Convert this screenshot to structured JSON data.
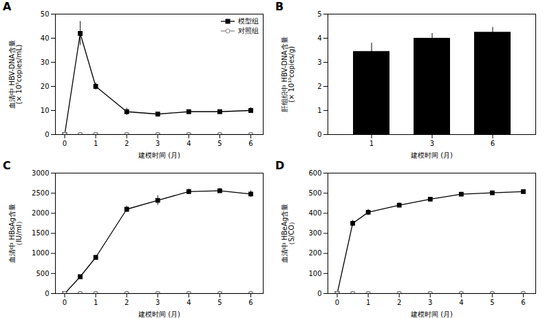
{
  "chart_data": [
    {
      "type": "line",
      "title": "A",
      "xlabel": "建模时间 (月)",
      "ylabel": "血清中 HBV-DNA含量\n(× 10⁵copies/mL)",
      "x": [
        0,
        0.5,
        1,
        2,
        3,
        4,
        5,
        6
      ],
      "series": [
        {
          "name": "模型组",
          "color": "black",
          "marker": "square",
          "values": [
            0,
            42,
            20,
            9.5,
            8.5,
            9.5,
            9.5,
            10
          ],
          "errors": [
            0,
            5,
            1.5,
            1.5,
            0.5,
            0.5,
            0.5,
            1.2
          ]
        },
        {
          "name": "对照组",
          "color": "#888888",
          "marker": "hollow_circle",
          "values": [
            0,
            0,
            0,
            0,
            0,
            0,
            0,
            0
          ],
          "errors": [
            0,
            0,
            0,
            0,
            0,
            0,
            0,
            0
          ]
        }
      ],
      "xlim": [
        -0.3,
        6.4
      ],
      "xticks": [
        0,
        1,
        2,
        3,
        4,
        5,
        6
      ],
      "ylim": [
        0,
        50
      ],
      "yticks": [
        0,
        10,
        20,
        30,
        40,
        50
      ],
      "legend": "upper right"
    },
    {
      "type": "bar",
      "title": "B",
      "xlabel": "建模时间 (月)",
      "ylabel": "肝组织中 HBV-DNA含量\n(× 10¹⁰copies/g)",
      "categories": [
        "1",
        "3",
        "6"
      ],
      "values": [
        3.45,
        4.0,
        4.25
      ],
      "errors": [
        0.35,
        0.2,
        0.2
      ],
      "color": "black",
      "ylim": [
        0,
        5
      ],
      "yticks": [
        0,
        1,
        2,
        3,
        4,
        5
      ]
    },
    {
      "type": "line",
      "title": "C",
      "xlabel": "建模时间 (月)",
      "ylabel": "血清中 HBsAg含量\n（IU/ml）",
      "x": [
        0,
        0.5,
        1,
        2,
        3,
        4,
        5,
        6
      ],
      "series": [
        {
          "color": "black",
          "marker": "square",
          "values": [
            0,
            420,
            900,
            2100,
            2320,
            2540,
            2560,
            2480
          ],
          "errors": [
            0,
            30,
            50,
            80,
            120,
            70,
            60,
            80
          ]
        },
        {
          "color": "#888888",
          "marker": "hollow_circle",
          "values": [
            0,
            0,
            0,
            0,
            0,
            0,
            0,
            0
          ],
          "errors": [
            0,
            0,
            0,
            0,
            0,
            0,
            0,
            0
          ]
        }
      ],
      "xlim": [
        -0.3,
        6.4
      ],
      "xticks": [
        0,
        1,
        2,
        3,
        4,
        5,
        6
      ],
      "ylim": [
        0,
        3000
      ],
      "yticks": [
        0,
        500,
        1000,
        1500,
        2000,
        2500,
        3000
      ]
    },
    {
      "type": "line",
      "title": "D",
      "xlabel": "建模时间 (月)",
      "ylabel": "血清中 HBeAg含量\n（S/CO）",
      "x": [
        0,
        0.5,
        1,
        2,
        3,
        4,
        5,
        6
      ],
      "series": [
        {
          "color": "black",
          "marker": "square",
          "values": [
            0,
            350,
            405,
            440,
            470,
            495,
            502,
            508
          ],
          "errors": [
            0,
            15,
            15,
            12,
            10,
            8,
            7,
            8
          ]
        },
        {
          "color": "#888888",
          "marker": "hollow_circle",
          "values": [
            0,
            0,
            0,
            0,
            0,
            0,
            0,
            0
          ],
          "errors": [
            0,
            0,
            0,
            0,
            0,
            0,
            0,
            0
          ]
        }
      ],
      "xlim": [
        -0.3,
        6.4
      ],
      "xticks": [
        0,
        1,
        2,
        3,
        4,
        5,
        6
      ],
      "ylim": [
        0,
        600
      ],
      "yticks": [
        0,
        100,
        200,
        300,
        400,
        500,
        600
      ]
    }
  ]
}
